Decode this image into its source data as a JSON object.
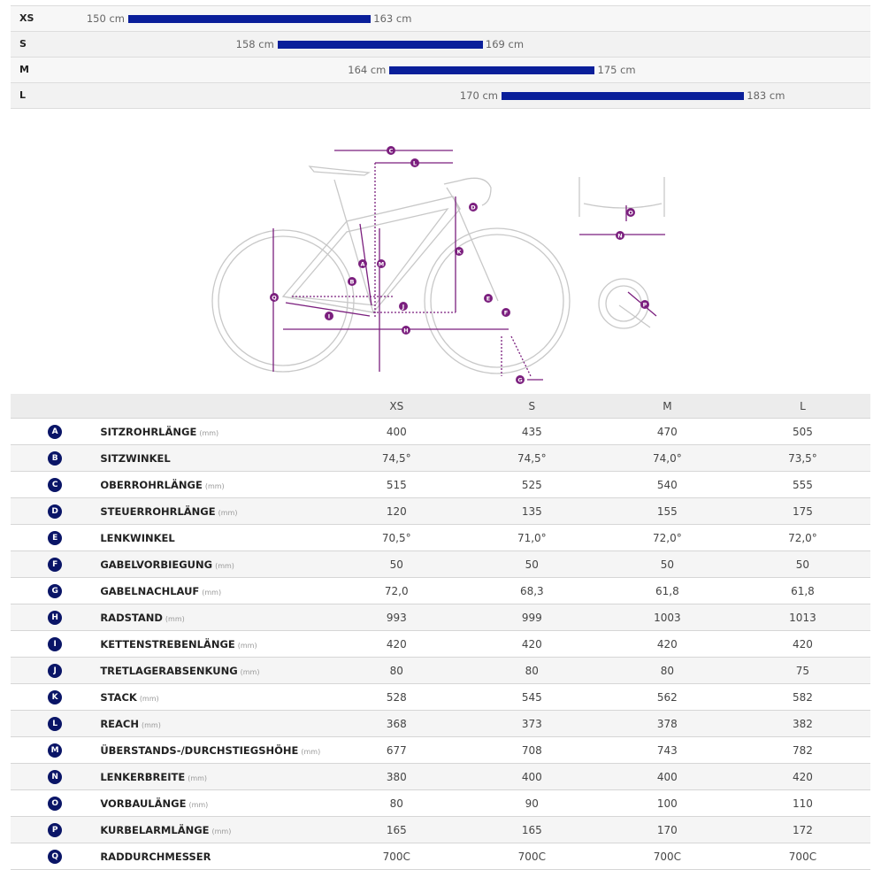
{
  "size_ranges": [
    {
      "size": "XS",
      "min_cm": 150,
      "max_cm": 163,
      "min_label": "150 cm",
      "max_label": "163 cm"
    },
    {
      "size": "S",
      "min_cm": 158,
      "max_cm": 169,
      "min_label": "158 cm",
      "max_label": "169 cm"
    },
    {
      "size": "M",
      "min_cm": 164,
      "max_cm": 175,
      "min_label": "164 cm",
      "max_label": "175 cm"
    },
    {
      "size": "L",
      "min_cm": 170,
      "max_cm": 183,
      "min_label": "170 cm",
      "max_label": "183 cm"
    }
  ],
  "colors": {
    "bar": "#0a1f9a",
    "badge": "#0a1567",
    "diagram_accent": "#7b1f7e"
  },
  "diagram_labels": [
    "A",
    "B",
    "C",
    "D",
    "E",
    "F",
    "G",
    "H",
    "I",
    "J",
    "K",
    "L",
    "M",
    "N",
    "O",
    "P",
    "Q"
  ],
  "table": {
    "headers": [
      "",
      "",
      "XS",
      "S",
      "M",
      "L"
    ],
    "rows": [
      {
        "key": "A",
        "name": "SITZROHRLÄNGE",
        "unit": "(mm)",
        "values": [
          "400",
          "435",
          "470",
          "505"
        ]
      },
      {
        "key": "B",
        "name": "SITZWINKEL",
        "unit": "",
        "values": [
          "74,5°",
          "74,5°",
          "74,0°",
          "73,5°"
        ]
      },
      {
        "key": "C",
        "name": "OBERROHRLÄNGE",
        "unit": "(mm)",
        "values": [
          "515",
          "525",
          "540",
          "555"
        ]
      },
      {
        "key": "D",
        "name": "STEUERROHRLÄNGE",
        "unit": "(mm)",
        "values": [
          "120",
          "135",
          "155",
          "175"
        ]
      },
      {
        "key": "E",
        "name": "LENKWINKEL",
        "unit": "",
        "values": [
          "70,5°",
          "71,0°",
          "72,0°",
          "72,0°"
        ]
      },
      {
        "key": "F",
        "name": "GABELVORBIEGUNG",
        "unit": "(mm)",
        "values": [
          "50",
          "50",
          "50",
          "50"
        ]
      },
      {
        "key": "G",
        "name": "GABELNACHLAUF",
        "unit": "(mm)",
        "values": [
          "72,0",
          "68,3",
          "61,8",
          "61,8"
        ]
      },
      {
        "key": "H",
        "name": "RADSTAND",
        "unit": "(mm)",
        "values": [
          "993",
          "999",
          "1003",
          "1013"
        ]
      },
      {
        "key": "I",
        "name": "KETTENSTREBENLÄNGE",
        "unit": "(mm)",
        "values": [
          "420",
          "420",
          "420",
          "420"
        ]
      },
      {
        "key": "J",
        "name": "TRETLAGERABSENKUNG",
        "unit": "(mm)",
        "values": [
          "80",
          "80",
          "80",
          "75"
        ]
      },
      {
        "key": "K",
        "name": "STACK",
        "unit": "(mm)",
        "values": [
          "528",
          "545",
          "562",
          "582"
        ]
      },
      {
        "key": "L",
        "name": "REACH",
        "unit": "(mm)",
        "values": [
          "368",
          "373",
          "378",
          "382"
        ]
      },
      {
        "key": "M",
        "name": "ÜBERSTANDS-/DURCHSTIEGSHÖHE",
        "unit": "(mm)",
        "values": [
          "677",
          "708",
          "743",
          "782"
        ]
      },
      {
        "key": "N",
        "name": "LENKERBREITE",
        "unit": "(mm)",
        "values": [
          "380",
          "400",
          "400",
          "420"
        ]
      },
      {
        "key": "O",
        "name": "VORBAULÄNGE",
        "unit": "(mm)",
        "values": [
          "80",
          "90",
          "100",
          "110"
        ]
      },
      {
        "key": "P",
        "name": "KURBELARMLÄNGE",
        "unit": "(mm)",
        "values": [
          "165",
          "165",
          "170",
          "172"
        ]
      },
      {
        "key": "Q",
        "name": "RADDURCHMESSER",
        "unit": "",
        "values": [
          "700C",
          "700C",
          "700C",
          "700C"
        ]
      }
    ]
  }
}
